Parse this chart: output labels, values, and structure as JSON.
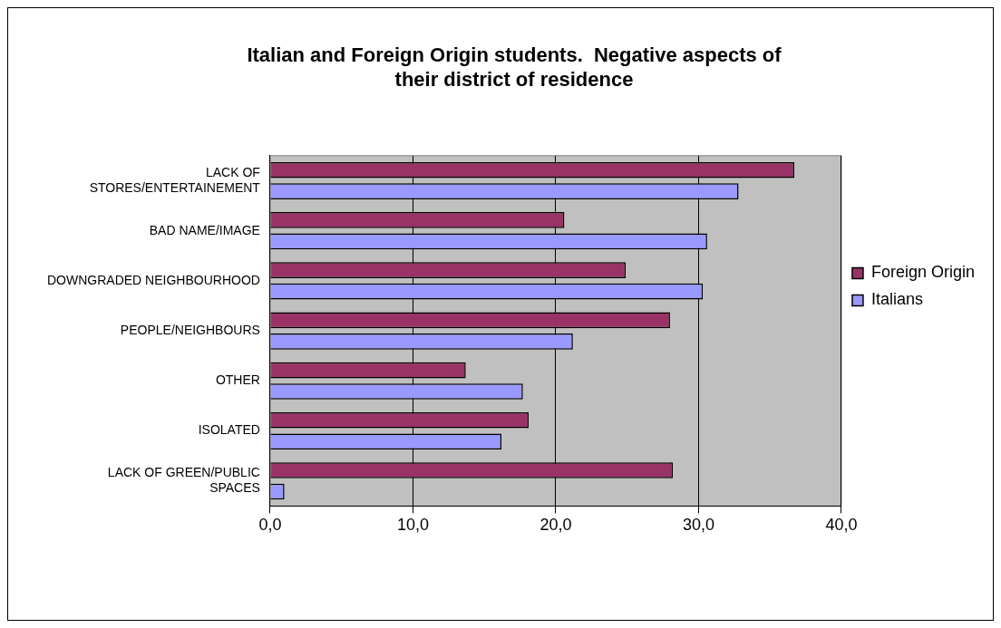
{
  "chart_data": {
    "type": "bar",
    "orientation": "horizontal",
    "title": "Italian and Foreign Origin students.  Negative aspects of their district of residence",
    "categories": [
      "LACK OF STORES/ENTERTAINEMENT",
      "BAD NAME/IMAGE",
      "DOWNGRADED NEIGHBOURHOOD",
      "PEOPLE/NEIGHBOURS",
      "OTHER",
      "ISOLATED",
      "LACK OF GREEN/PUBLIC SPACES"
    ],
    "series": [
      {
        "name": "Foreign Origin",
        "color": "#993366",
        "values": [
          36.7,
          20.6,
          24.9,
          28.0,
          13.7,
          18.1,
          28.2
        ]
      },
      {
        "name": "Italians",
        "color": "#9999ff",
        "values": [
          32.8,
          30.6,
          30.3,
          21.2,
          17.7,
          16.2,
          1.0
        ]
      }
    ],
    "xlim": [
      0,
      40
    ],
    "xticks": [
      {
        "value": 0,
        "label": "0,0"
      },
      {
        "value": 10,
        "label": "10,0"
      },
      {
        "value": 20,
        "label": "20,0"
      },
      {
        "value": 30,
        "label": "30,0"
      },
      {
        "value": 40,
        "label": "40,0"
      }
    ],
    "grid": "x",
    "legend": "right"
  }
}
